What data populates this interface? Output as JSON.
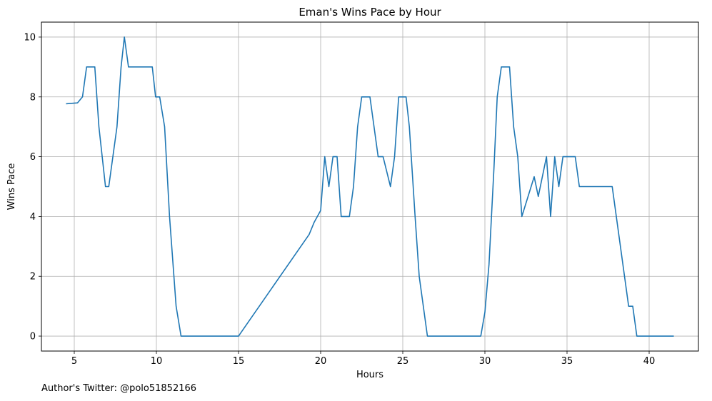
{
  "chart_data": {
    "type": "line",
    "title": "Eman's Wins Pace by Hour",
    "xlabel": "Hours",
    "ylabel": "Wins Pace",
    "xlim": [
      3.0,
      43.0
    ],
    "ylim": [
      -0.5,
      10.5
    ],
    "xticks": [
      5,
      10,
      15,
      20,
      25,
      30,
      35,
      40
    ],
    "yticks": [
      0,
      2,
      4,
      6,
      8,
      10
    ],
    "grid": true,
    "line_color": "#1f77b4",
    "series": [
      {
        "x": [
          4.5,
          5.2,
          5.5,
          5.75,
          6.25,
          6.5,
          6.9,
          7.1,
          7.6,
          7.85,
          8.05,
          8.3,
          9.75,
          9.95,
          10.2,
          10.5,
          10.8,
          11.2,
          11.5,
          15.0,
          19.3,
          19.6,
          20.0,
          20.25,
          20.5,
          20.75,
          21.0,
          21.25,
          21.75,
          22.0,
          22.25,
          22.5,
          23.0,
          23.25,
          23.5,
          23.8,
          24.25,
          24.5,
          24.75,
          25.2,
          25.4,
          25.75,
          26.0,
          26.5,
          29.75,
          30.0,
          30.25,
          30.55,
          30.75,
          31.0,
          31.5,
          31.75,
          32.0,
          32.25,
          33.0,
          33.25,
          33.75,
          34.0,
          34.25,
          34.5,
          34.75,
          35.0,
          35.5,
          35.75,
          37.75,
          38.0,
          38.5,
          38.75,
          39.0,
          39.25,
          41.5
        ],
        "y": [
          7.77,
          7.8,
          8.0,
          9.0,
          9.0,
          7.0,
          5.0,
          5.0,
          7.0,
          9.0,
          10.0,
          9.0,
          9.0,
          8.0,
          8.0,
          7.0,
          4.0,
          1.0,
          0.0,
          0.0,
          3.4,
          3.8,
          4.2,
          6.0,
          5.0,
          6.0,
          6.0,
          4.0,
          4.0,
          5.0,
          7.0,
          8.0,
          8.0,
          7.0,
          6.0,
          6.0,
          5.0,
          6.0,
          8.0,
          8.0,
          7.0,
          4.0,
          2.0,
          0.0,
          0.0,
          0.8,
          2.4,
          5.6,
          8.0,
          9.0,
          9.0,
          7.0,
          6.0,
          4.0,
          5.33,
          4.67,
          6.0,
          4.0,
          6.0,
          5.0,
          6.0,
          6.0,
          6.0,
          5.0,
          5.0,
          4.0,
          2.0,
          1.0,
          1.0,
          0.0,
          0.0
        ]
      }
    ]
  },
  "footer": {
    "author": "Author's Twitter: @polo51852166"
  }
}
